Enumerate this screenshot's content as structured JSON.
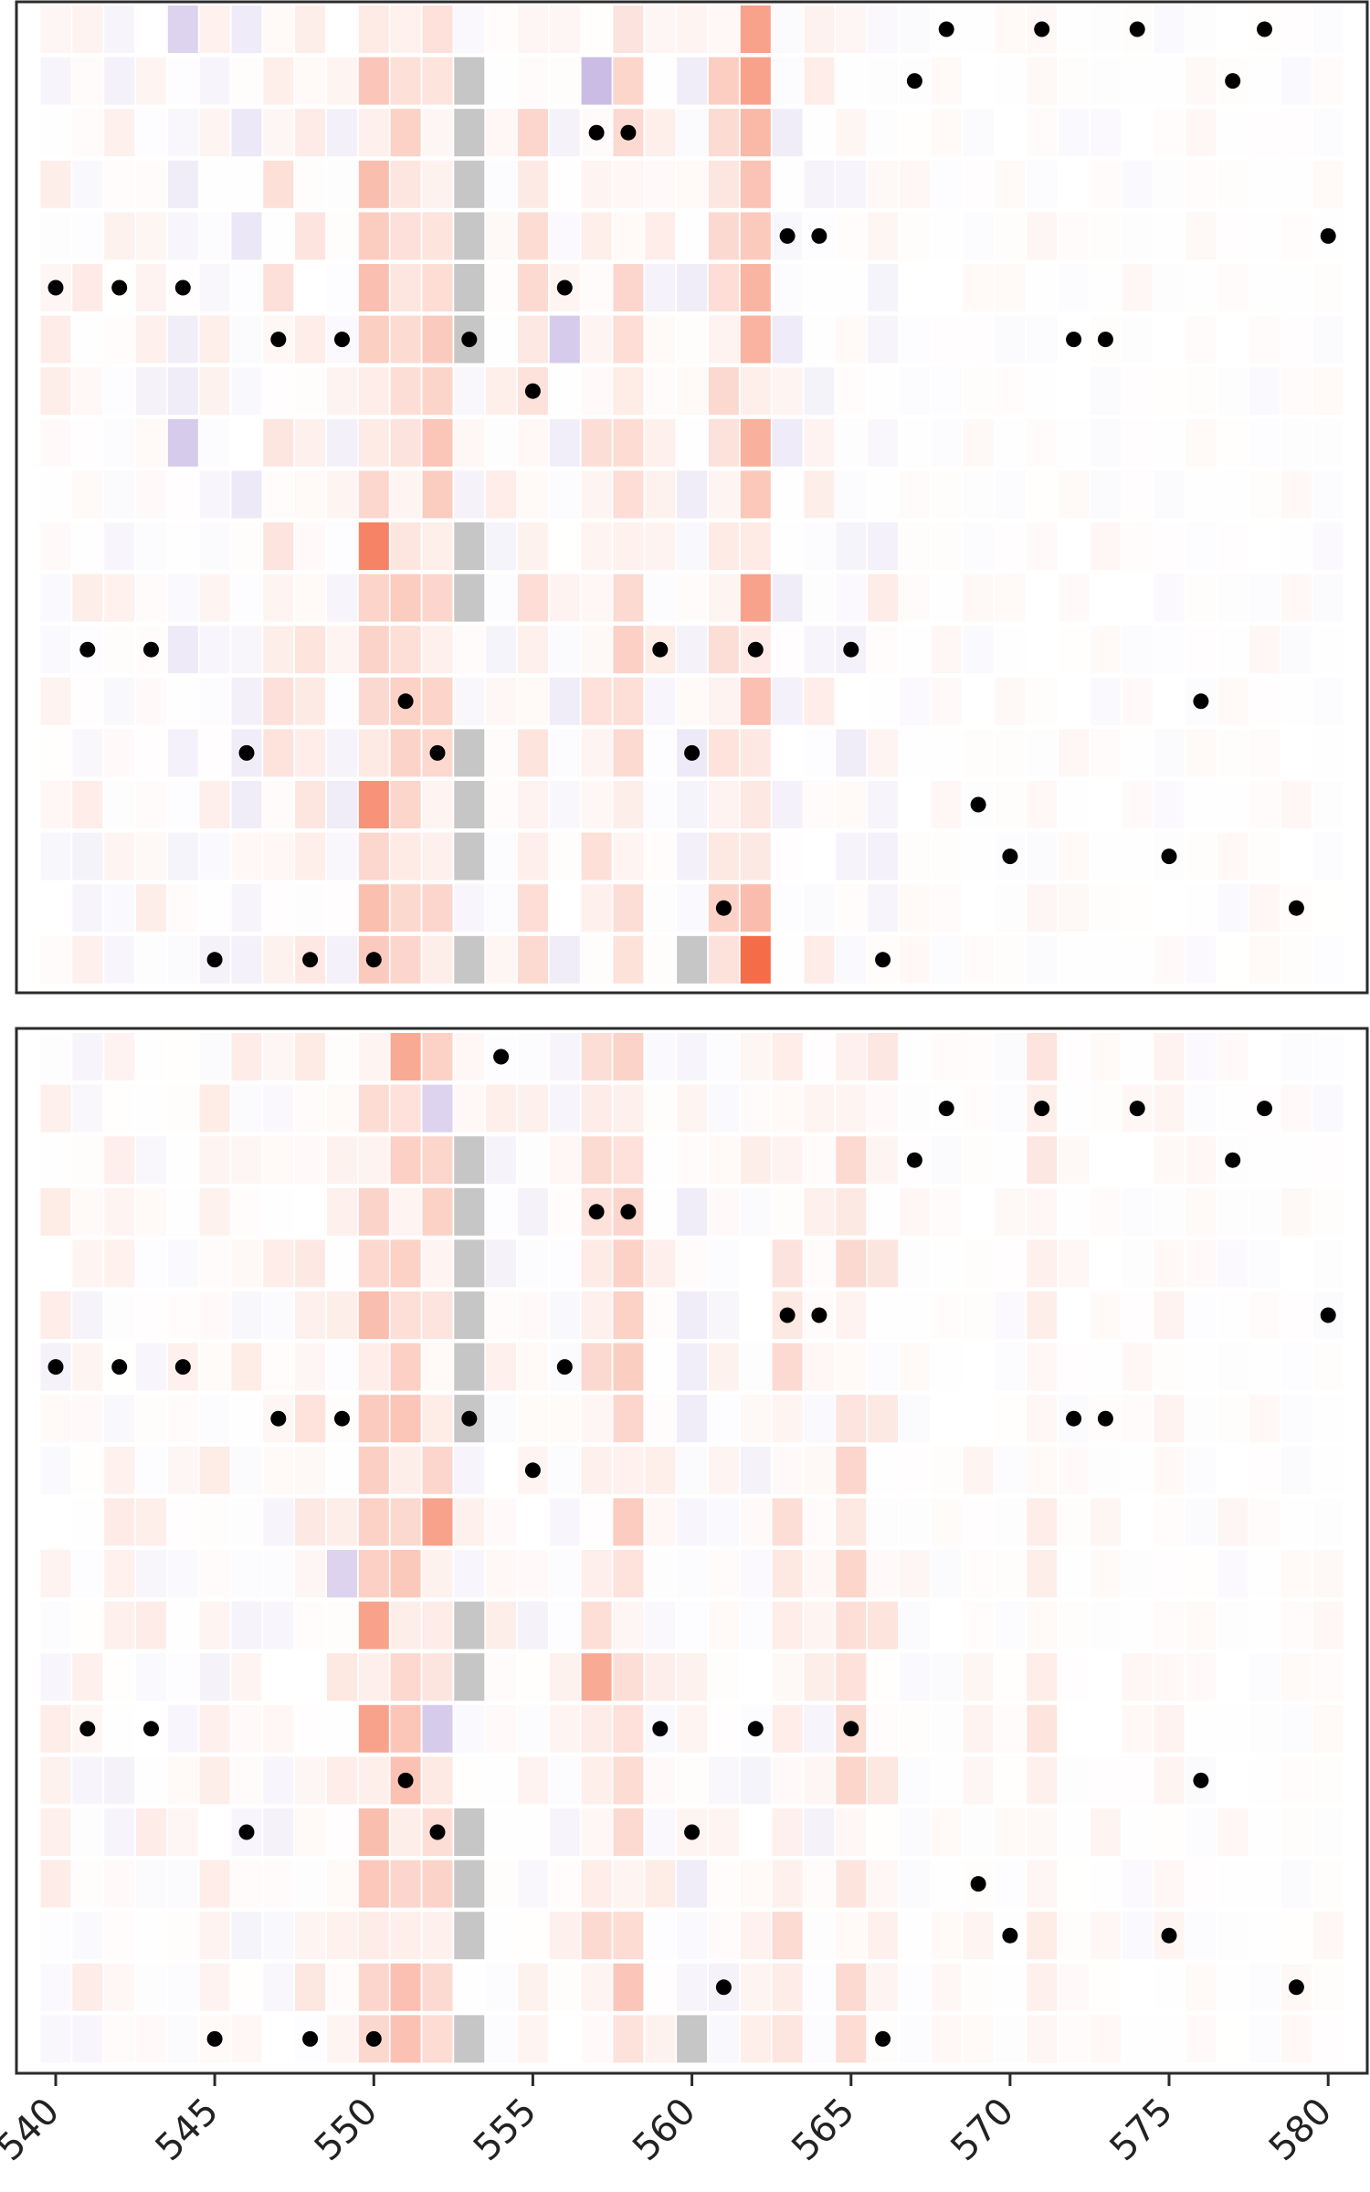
{
  "chart_data": {
    "type": "heatmap",
    "title": "",
    "xlabel": "",
    "ylabel": "",
    "xlim": [
      540,
      580
    ],
    "x_ticks": [
      "540",
      "545",
      "550",
      "555",
      "560",
      "565",
      "570",
      "575",
      "580"
    ],
    "shared_x_axis": true,
    "grid": false,
    "legend": "none",
    "colors": {
      "positive": "#f4643f",
      "negative": "#8c6bc8",
      "missing": "#c6c6c6",
      "marker": "#000000",
      "neutral": "#ffffff"
    },
    "panels": [
      {
        "name": "",
        "rows": 19,
        "markers": [
          [
            0,
            568
          ],
          [
            0,
            571
          ],
          [
            0,
            574
          ],
          [
            0,
            578
          ],
          [
            1,
            567
          ],
          [
            1,
            577
          ],
          [
            2,
            557
          ],
          [
            2,
            558
          ],
          [
            4,
            563
          ],
          [
            4,
            564
          ],
          [
            4,
            580
          ],
          [
            5,
            540
          ],
          [
            5,
            542
          ],
          [
            5,
            544
          ],
          [
            5,
            556
          ],
          [
            6,
            547
          ],
          [
            6,
            549
          ],
          [
            6,
            553
          ],
          [
            6,
            572
          ],
          [
            6,
            573
          ],
          [
            7,
            555
          ],
          [
            12,
            541
          ],
          [
            12,
            543
          ],
          [
            12,
            559
          ],
          [
            12,
            562
          ],
          [
            12,
            565
          ],
          [
            13,
            551
          ],
          [
            13,
            576
          ],
          [
            14,
            546
          ],
          [
            14,
            552
          ],
          [
            14,
            560
          ],
          [
            15,
            569
          ],
          [
            16,
            570
          ],
          [
            16,
            575
          ],
          [
            17,
            561
          ],
          [
            17,
            579
          ],
          [
            18,
            545
          ],
          [
            18,
            548
          ],
          [
            18,
            550
          ],
          [
            18,
            566
          ]
        ],
        "missing": [
          [
            1,
            553
          ],
          [
            2,
            553
          ],
          [
            3,
            553
          ],
          [
            4,
            553
          ],
          [
            5,
            553
          ],
          [
            6,
            553
          ],
          [
            10,
            553
          ],
          [
            11,
            553
          ],
          [
            14,
            553
          ],
          [
            15,
            553
          ],
          [
            16,
            553
          ],
          [
            18,
            553
          ],
          [
            18,
            560
          ]
        ],
        "strong_cells": [
          [
            0,
            562,
            0.6
          ],
          [
            1,
            562,
            0.6
          ],
          [
            10,
            550,
            0.8
          ],
          [
            11,
            562,
            0.6
          ],
          [
            15,
            550,
            0.7
          ],
          [
            18,
            562,
            0.95
          ],
          [
            1,
            557,
            -0.45
          ],
          [
            0,
            544,
            -0.3
          ],
          [
            6,
            556,
            -0.35
          ],
          [
            8,
            544,
            -0.35
          ]
        ]
      },
      {
        "name": "",
        "rows": 20,
        "markers": [
          [
            0,
            554
          ],
          [
            1,
            568
          ],
          [
            1,
            571
          ],
          [
            1,
            574
          ],
          [
            1,
            578
          ],
          [
            2,
            567
          ],
          [
            2,
            577
          ],
          [
            3,
            557
          ],
          [
            3,
            558
          ],
          [
            5,
            563
          ],
          [
            5,
            564
          ],
          [
            5,
            580
          ],
          [
            6,
            540
          ],
          [
            6,
            542
          ],
          [
            6,
            544
          ],
          [
            6,
            556
          ],
          [
            7,
            547
          ],
          [
            7,
            549
          ],
          [
            7,
            553
          ],
          [
            7,
            572
          ],
          [
            7,
            573
          ],
          [
            8,
            555
          ],
          [
            13,
            541
          ],
          [
            13,
            543
          ],
          [
            13,
            559
          ],
          [
            13,
            562
          ],
          [
            13,
            565
          ],
          [
            14,
            551
          ],
          [
            14,
            576
          ],
          [
            15,
            546
          ],
          [
            15,
            552
          ],
          [
            15,
            560
          ],
          [
            16,
            569
          ],
          [
            17,
            570
          ],
          [
            17,
            575
          ],
          [
            18,
            561
          ],
          [
            18,
            579
          ],
          [
            19,
            545
          ],
          [
            19,
            548
          ],
          [
            19,
            550
          ],
          [
            19,
            566
          ]
        ],
        "missing": [
          [
            2,
            553
          ],
          [
            3,
            553
          ],
          [
            4,
            553
          ],
          [
            5,
            553
          ],
          [
            6,
            553
          ],
          [
            7,
            553
          ],
          [
            11,
            553
          ],
          [
            12,
            553
          ],
          [
            15,
            553
          ],
          [
            16,
            553
          ],
          [
            17,
            553
          ],
          [
            19,
            553
          ],
          [
            19,
            560
          ]
        ],
        "strong_cells": [
          [
            0,
            551,
            0.55
          ],
          [
            9,
            552,
            0.6
          ],
          [
            11,
            550,
            0.6
          ],
          [
            13,
            550,
            0.6
          ],
          [
            12,
            557,
            0.55
          ],
          [
            1,
            552,
            -0.3
          ],
          [
            13,
            552,
            -0.35
          ],
          [
            10,
            549,
            -0.3
          ]
        ]
      }
    ]
  }
}
